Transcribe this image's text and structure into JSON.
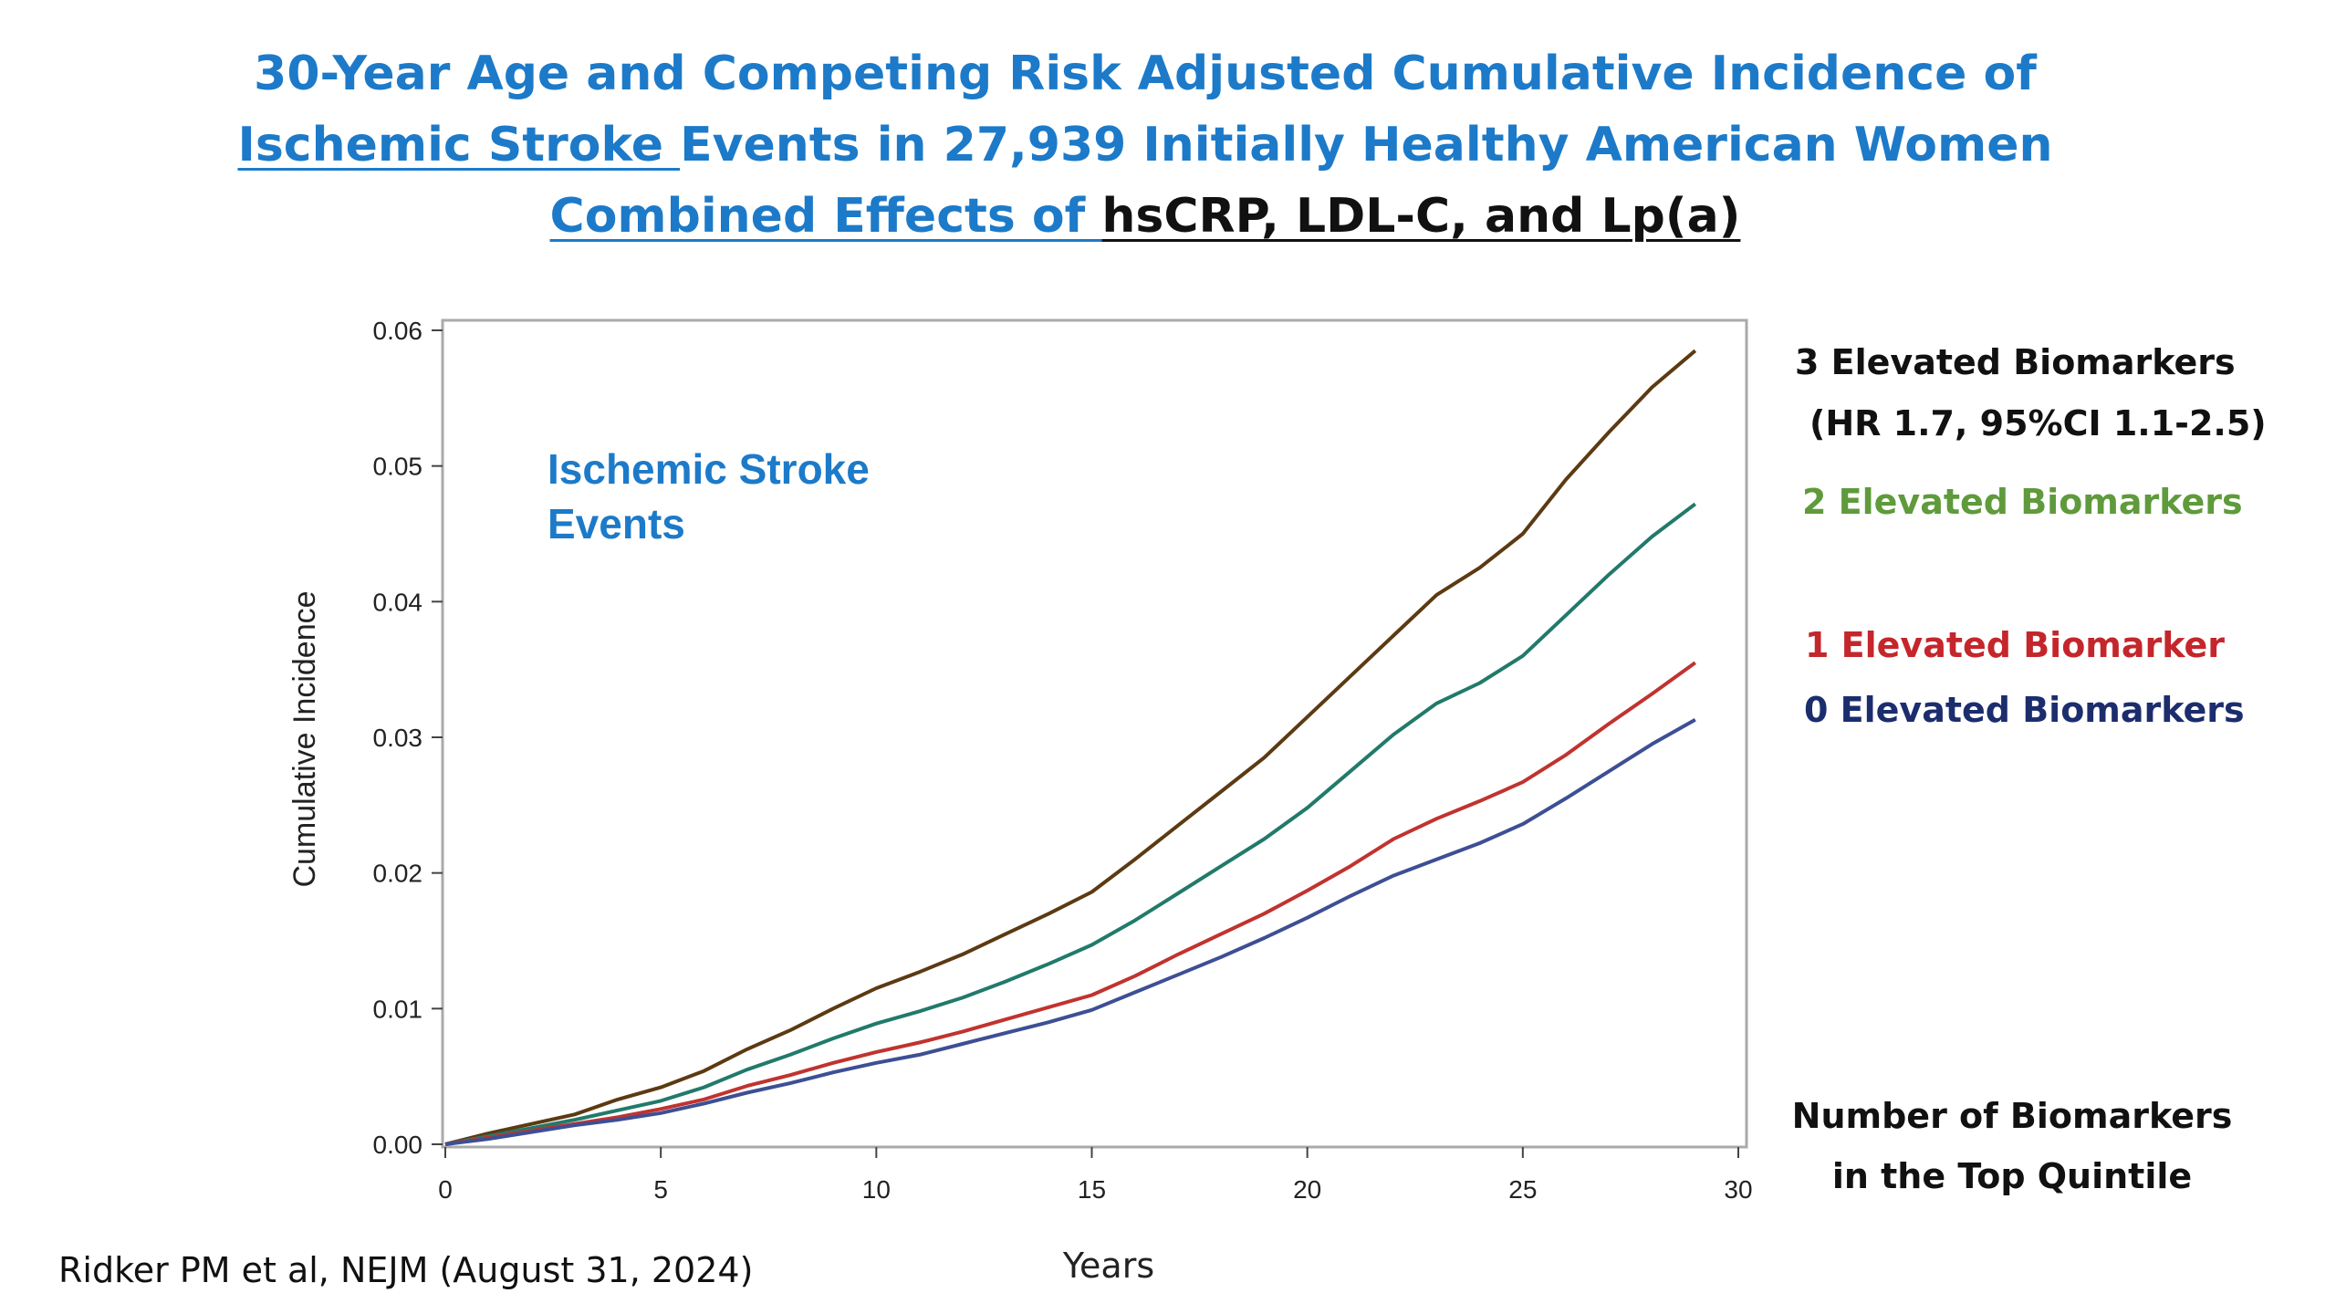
{
  "title": {
    "line1": "30-Year Age and Competing Risk Adjusted Cumulative Incidence of",
    "line2_underlined": "Ischemic Stroke ",
    "line2_rest": "Events in 27,939 Initially Healthy American Women",
    "line3_blue": "Combined Effects of ",
    "line3_black": "hsCRP, LDL-C, and Lp(a)"
  },
  "legend": {
    "item0": "3 Elevated Biomarkers",
    "item0_sub": "(HR 1.7, 95%CI 1.1-2.5)",
    "item1": "2 Elevated Biomarkers",
    "item2": "1 Elevated Biomarker",
    "item3": "0 Elevated Biomarkers",
    "note_line1": "Number of Biomarkers",
    "note_line2": "in the Top Quintile"
  },
  "citation": "Ridker PM et al, NEJM (August 31, 2024)",
  "colors": {
    "title_blue": "#1c7ac9",
    "series_3": "#5c3a12",
    "series_2": "#217a6b",
    "series_1": "#c0332f",
    "series_0": "#3d4f94",
    "series_0_label": "#1c2d6e",
    "series_2_label": "#5f9a3b",
    "series_1_label": "#c4262b"
  },
  "chart_data": {
    "type": "line",
    "xlabel": "Years",
    "ylabel": "Cumulative Incidence",
    "annotation_line1": "Ischemic Stroke",
    "annotation_line2": "Events",
    "xlim": [
      0,
      30
    ],
    "ylim": [
      0,
      0.06
    ],
    "xticks": [
      0,
      5,
      10,
      15,
      20,
      25,
      30
    ],
    "yticks": [
      0,
      0.01,
      0.02,
      0.03,
      0.04,
      0.05,
      0.06
    ],
    "ytick_labels": [
      "0.00",
      "0.01",
      "0.02",
      "0.03",
      "0.04",
      "0.05",
      "0.06"
    ],
    "grid": false,
    "series": [
      {
        "name": "3 Elevated Biomarkers",
        "x": [
          0,
          1,
          2,
          3,
          4,
          5,
          6,
          7,
          8,
          9,
          10,
          11,
          12,
          13,
          14,
          15,
          16,
          17,
          18,
          19,
          20,
          21,
          22,
          23,
          24,
          25,
          26,
          27,
          28,
          29
        ],
        "values": [
          0,
          0.0008,
          0.0015,
          0.0022,
          0.0033,
          0.0042,
          0.0054,
          0.007,
          0.0084,
          0.01,
          0.0115,
          0.0127,
          0.014,
          0.0155,
          0.017,
          0.0186,
          0.021,
          0.0235,
          0.026,
          0.0285,
          0.0315,
          0.0345,
          0.0375,
          0.0405,
          0.0425,
          0.045,
          0.049,
          0.0525,
          0.0558,
          0.0585
        ]
      },
      {
        "name": "2 Elevated Biomarkers",
        "x": [
          0,
          1,
          2,
          3,
          4,
          5,
          6,
          7,
          8,
          9,
          10,
          11,
          12,
          13,
          14,
          15,
          16,
          17,
          18,
          19,
          20,
          21,
          22,
          23,
          24,
          25,
          26,
          27,
          28,
          29
        ],
        "values": [
          0,
          0.0006,
          0.0012,
          0.0018,
          0.0025,
          0.0032,
          0.0042,
          0.0055,
          0.0066,
          0.0078,
          0.0089,
          0.0098,
          0.0108,
          0.012,
          0.0133,
          0.0147,
          0.0165,
          0.0185,
          0.0205,
          0.0225,
          0.0248,
          0.0275,
          0.0302,
          0.0325,
          0.034,
          0.036,
          0.039,
          0.042,
          0.0448,
          0.0472
        ]
      },
      {
        "name": "1 Elevated Biomarker",
        "x": [
          0,
          1,
          2,
          3,
          4,
          5,
          6,
          7,
          8,
          9,
          10,
          11,
          12,
          13,
          14,
          15,
          16,
          17,
          18,
          19,
          20,
          21,
          22,
          23,
          24,
          25,
          26,
          27,
          28,
          29
        ],
        "values": [
          0,
          0.0005,
          0.001,
          0.0015,
          0.002,
          0.0026,
          0.0033,
          0.0043,
          0.0051,
          0.006,
          0.0068,
          0.0075,
          0.0083,
          0.0092,
          0.0101,
          0.011,
          0.0124,
          0.014,
          0.0155,
          0.017,
          0.0187,
          0.0205,
          0.0225,
          0.024,
          0.0253,
          0.0267,
          0.0287,
          0.031,
          0.0332,
          0.0355
        ]
      },
      {
        "name": "0 Elevated Biomarkers",
        "x": [
          0,
          1,
          2,
          3,
          4,
          5,
          6,
          7,
          8,
          9,
          10,
          11,
          12,
          13,
          14,
          15,
          16,
          17,
          18,
          19,
          20,
          21,
          22,
          23,
          24,
          25,
          26,
          27,
          28,
          29
        ],
        "values": [
          0,
          0.0004,
          0.0009,
          0.0014,
          0.0018,
          0.0023,
          0.003,
          0.0038,
          0.0045,
          0.0053,
          0.006,
          0.0066,
          0.0074,
          0.0082,
          0.009,
          0.0099,
          0.0112,
          0.0125,
          0.0138,
          0.0152,
          0.0167,
          0.0183,
          0.0198,
          0.021,
          0.0222,
          0.0236,
          0.0255,
          0.0275,
          0.0295,
          0.0313
        ]
      }
    ]
  }
}
